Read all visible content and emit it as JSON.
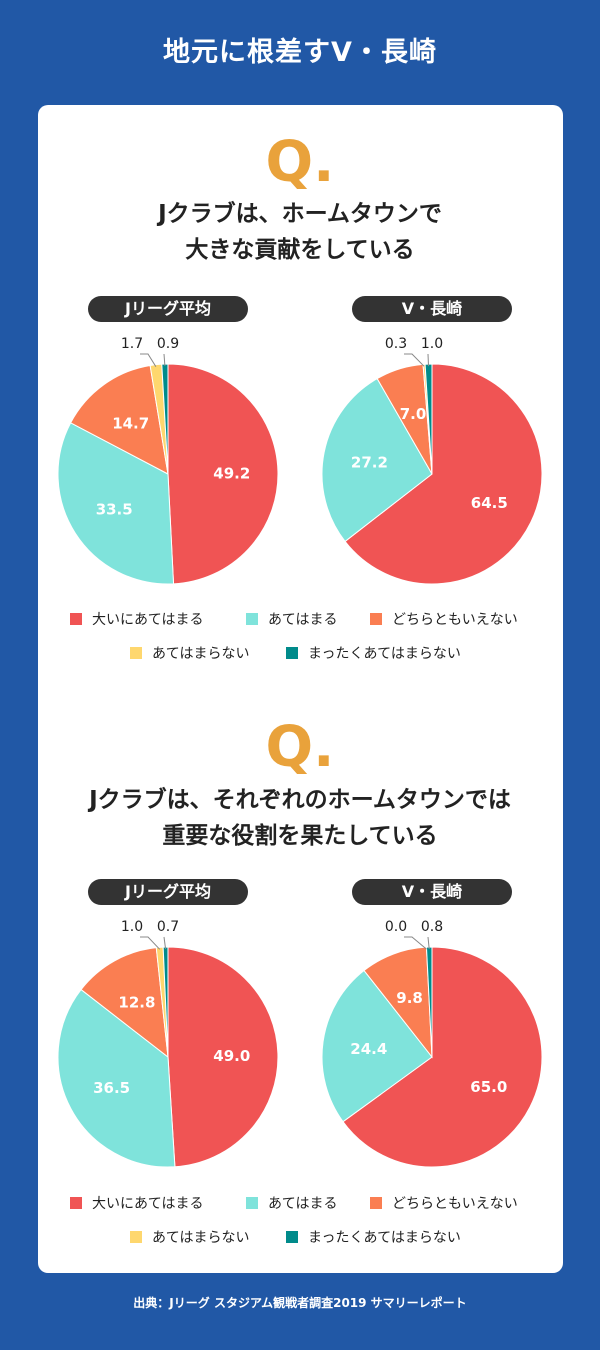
{
  "page": {
    "title": "地元に根差すV・長崎",
    "source": "出典：Jリーグ スタジアム観戦者調査2019 サマリーレポート"
  },
  "colors": {
    "background": "#2158a6",
    "very_true": "#f05454",
    "true": "#7fe3db",
    "neutral": "#fa7e52",
    "not_true": "#fed76e",
    "not_at_all": "#008b8b",
    "q_mark": "#e9a23b"
  },
  "legend": {
    "items": [
      {
        "label": "大いにあてはまる",
        "color": "#f05454"
      },
      {
        "label": "あてはまる",
        "color": "#7fe3db"
      },
      {
        "label": "どちらともいえない",
        "color": "#fa7e52"
      },
      {
        "label": "あてはまらない",
        "color": "#fed76e"
      },
      {
        "label": "まったくあてはまらない",
        "color": "#008b8b"
      }
    ]
  },
  "q_mark": "Q.",
  "questions": [
    {
      "line1": "Jクラブは、ホームタウンで",
      "line2": "大きな貢献をしている",
      "left_label": "Jリーグ平均",
      "right_label": "V・長崎"
    },
    {
      "line1": "Jクラブは、それぞれのホームタウンでは",
      "line2": "重要な役割を果たしている",
      "left_label": "Jリーグ平均",
      "right_label": "V・長崎"
    }
  ],
  "chart_data": [
    {
      "type": "pie",
      "title": "Jリーグ平均",
      "categories": [
        "大いにあてはまる",
        "あてはまる",
        "どちらともいえない",
        "あてはまらない",
        "まったくあてはまらない"
      ],
      "values": [
        49.2,
        33.5,
        14.7,
        1.7,
        0.9
      ],
      "labels": [
        "49.2",
        "33.5",
        "14.7",
        "1.7",
        "0.9"
      ]
    },
    {
      "type": "pie",
      "title": "V・長崎",
      "categories": [
        "大いにあてはまる",
        "あてはまる",
        "どちらともいえない",
        "あてはまらない",
        "まったくあてはまらない"
      ],
      "values": [
        64.5,
        27.2,
        7.0,
        0.3,
        1.0
      ],
      "labels": [
        "64.5",
        "27.2",
        "7.0",
        "0.3",
        "1.0"
      ]
    },
    {
      "type": "pie",
      "title": "Jリーグ平均",
      "categories": [
        "大いにあてはまる",
        "あてはまる",
        "どちらともいえない",
        "あてはまらない",
        "まったくあてはまらない"
      ],
      "values": [
        49.0,
        36.5,
        12.8,
        1.0,
        0.7
      ],
      "labels": [
        "49.0",
        "36.5",
        "12.8",
        "1.0",
        "0.7"
      ]
    },
    {
      "type": "pie",
      "title": "V・長崎",
      "categories": [
        "大いにあてはまる",
        "あてはまる",
        "どちらともいえない",
        "あてはまらない",
        "まったくあてはまらない"
      ],
      "values": [
        65.0,
        24.4,
        9.8,
        0.0,
        0.8
      ],
      "labels": [
        "65.0",
        "24.4",
        "9.8",
        "0.0",
        "0.8"
      ]
    }
  ]
}
